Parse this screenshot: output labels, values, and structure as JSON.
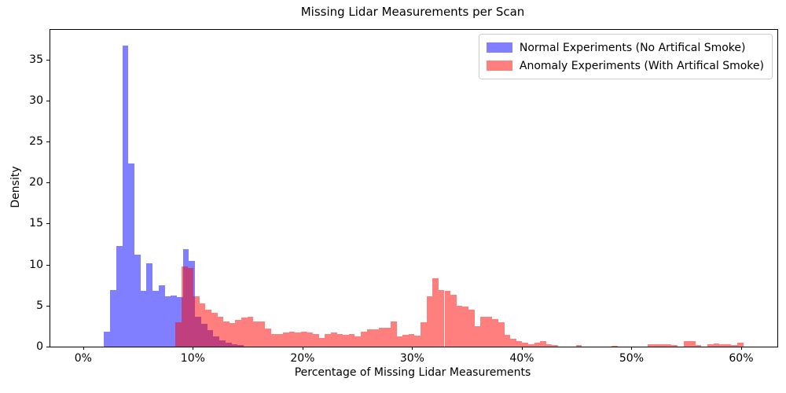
{
  "chart_data": {
    "type": "histogram",
    "title": "Missing Lidar Measurements per Scan",
    "xlabel": "Percentage of Missing Lidar Measurements",
    "ylabel": "Density",
    "x_tick_values": [
      0,
      10,
      20,
      30,
      40,
      50,
      60
    ],
    "x_tick_labels": [
      "0%",
      "10%",
      "20%",
      "30%",
      "40%",
      "50%",
      "60%"
    ],
    "y_tick_values": [
      0,
      5,
      10,
      15,
      20,
      25,
      30,
      35
    ],
    "xlim": [
      -3.0,
      63.3
    ],
    "ylim": [
      0,
      38.6
    ],
    "grid": false,
    "legend_position": "upper right",
    "legend_border_color": "#cccccc",
    "axis_color": "#000000",
    "series": [
      {
        "name": "Normal Experiments (No Artifical Smoke)",
        "color": "#0000ff",
        "fill_alpha": 0.5,
        "legend_swatch_color": "#7f7fff",
        "bin_start_pct": 1.9,
        "bin_width_pct": 0.5535,
        "densities": [
          1.8,
          6.9,
          12.3,
          36.7,
          22.3,
          11.2,
          6.8,
          10.2,
          6.8,
          7.5,
          6.1,
          6.2,
          6.0,
          11.9,
          10.4,
          3.6,
          2.8,
          2.0,
          1.2,
          0.8,
          0.5,
          0.3,
          0.15
        ]
      },
      {
        "name": "Anomaly Experiments (With Artifical Smoke)",
        "color": "#ff0000",
        "fill_alpha": 0.5,
        "legend_swatch_color": "#ff7f7f",
        "bin_start_pct": 8.42,
        "bin_width_pct": 0.545,
        "densities": [
          3.0,
          9.8,
          9.6,
          6.1,
          5.3,
          4.5,
          4.1,
          3.6,
          3.1,
          2.9,
          3.3,
          3.5,
          3.6,
          3.1,
          3.1,
          2.2,
          1.5,
          1.55,
          1.7,
          1.8,
          1.7,
          1.8,
          1.7,
          1.55,
          1.1,
          1.55,
          1.75,
          1.55,
          1.4,
          1.5,
          1.2,
          1.8,
          2.1,
          2.1,
          2.3,
          2.3,
          3.1,
          1.2,
          1.4,
          1.5,
          1.3,
          3.0,
          6.1,
          8.35,
          6.9,
          6.8,
          6.3,
          5.0,
          4.9,
          4.5,
          2.5,
          3.6,
          3.6,
          3.4,
          3.0,
          1.4,
          1.0,
          0.7,
          0.45,
          0.3,
          0.5,
          0.7,
          0.25,
          0.15,
          0,
          0,
          0,
          0.15,
          0,
          0,
          0,
          0,
          0,
          0.12,
          0,
          0,
          0,
          0,
          0,
          0.3,
          0.3,
          0.3,
          0.25,
          0.15,
          0,
          0.65,
          0.65,
          0.15,
          0,
          0.25,
          0.4,
          0.25,
          0.3,
          0.15,
          0.45
        ]
      }
    ]
  }
}
